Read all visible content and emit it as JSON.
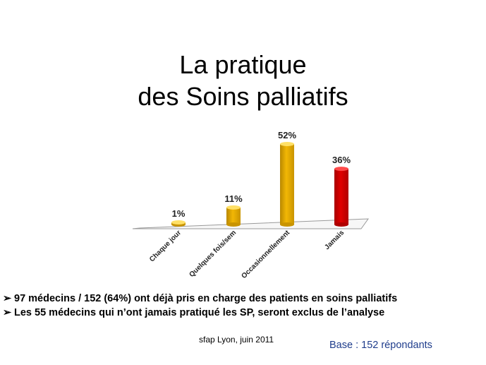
{
  "slide": {
    "title_line1": "La pratique",
    "title_line2": "des Soins palliatifs"
  },
  "bullets": [
    {
      "marker": "➢",
      "text": "97 médecins / 152  (64%) ont déjà pris en charge des patients en soins palliatifs"
    },
    {
      "marker": "➢",
      "text": "Les  55 médecins qui n’ont jamais  pratiqué les SP, seront exclus de l’analyse"
    }
  ],
  "footer": "sfap Lyon, juin 2011",
  "base_note": "Base : 152 répondants",
  "colors": {
    "bar_yellow": "#F2B705",
    "bar_red": "#E00000",
    "base_text": "#1F3D8C"
  },
  "chart_data": {
    "type": "bar",
    "categories": [
      "Chaque jour",
      "Quelques fois/sem",
      "Occasionnellement",
      "Jamais"
    ],
    "values": [
      1,
      11,
      52,
      36
    ],
    "data_labels": [
      "1%",
      "11%",
      "52%",
      "36%"
    ],
    "bar_colors": [
      "yellow",
      "yellow",
      "yellow",
      "red"
    ],
    "ylim": [
      0,
      52
    ],
    "grid": false
  }
}
